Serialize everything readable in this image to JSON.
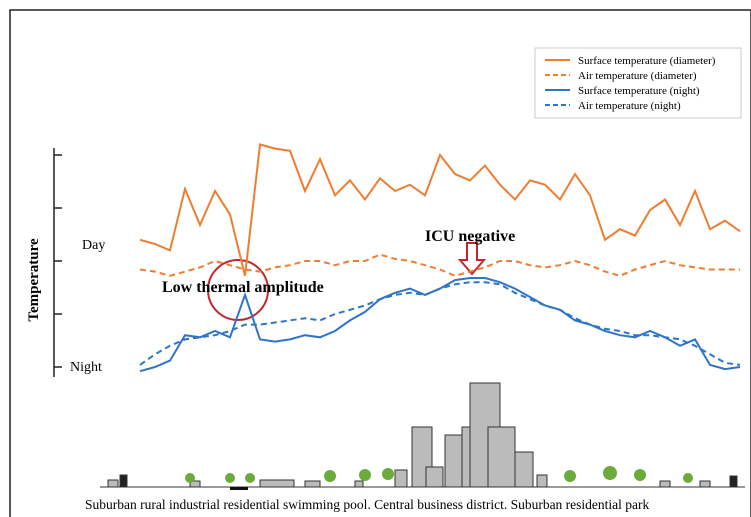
{
  "chart_data": {
    "type": "line",
    "y_label": "Temperature",
    "annotations": {
      "day": "Day",
      "night": "Night",
      "low": "Low thermal amplitude",
      "icu": "ICU negative",
      "caption": "Suburban rural industrial residential swimming pool. Central business district. Suburban residential park"
    },
    "x": [
      0,
      1,
      2,
      3,
      4,
      5,
      6,
      7,
      8,
      9,
      10,
      11,
      12,
      13,
      14,
      15,
      16,
      17,
      18,
      19,
      20,
      21,
      22,
      23,
      24,
      25,
      26,
      27,
      28,
      29,
      30,
      31,
      32,
      33,
      34,
      35,
      36,
      37,
      38,
      39,
      40
    ],
    "xlim": [
      0,
      40
    ],
    "ylim": [
      -5,
      105
    ],
    "yticks": [
      0,
      25,
      50,
      75,
      100
    ],
    "series": [
      {
        "name": "Surface temperature (diameter)",
        "color": "#ed7d31",
        "dash": false,
        "values": [
          60,
          58,
          55,
          84,
          67,
          83,
          72,
          43,
          105,
          103,
          102,
          83,
          98,
          81,
          88,
          79,
          89,
          83,
          86,
          81,
          100,
          91,
          88,
          95,
          86,
          79,
          88,
          86,
          79,
          91,
          81,
          60,
          65,
          62,
          74,
          79,
          67,
          83,
          65,
          69,
          64
        ]
      },
      {
        "name": "Air temperature (diameter)",
        "color": "#ed7d31",
        "dash": true,
        "values": [
          46,
          45,
          43,
          45,
          47,
          50,
          48,
          46,
          45,
          47,
          48,
          50,
          50,
          48,
          50,
          50,
          53,
          51,
          50,
          48,
          46,
          43,
          45,
          47,
          50,
          50,
          48,
          47,
          48,
          50,
          48,
          45,
          43,
          46,
          48,
          50,
          48,
          47,
          46,
          46,
          46
        ]
      },
      {
        "name": "Surface temperature (night)",
        "color": "#2e75c9",
        "dash": false,
        "values": [
          -2,
          0,
          3,
          15,
          14,
          17,
          14,
          34,
          13,
          12,
          13,
          15,
          14,
          17,
          22,
          26,
          32,
          35,
          37,
          34,
          37,
          41,
          42,
          42,
          40,
          37,
          33,
          29,
          27,
          22,
          20,
          17,
          15,
          14,
          17,
          14,
          10,
          13,
          1,
          -1,
          0
        ]
      },
      {
        "name": "Air temperature (night)",
        "color": "#2e75c9",
        "dash": true,
        "values": [
          1,
          6,
          10,
          13,
          14,
          15,
          17,
          20,
          20,
          21,
          22,
          23,
          22,
          25,
          27,
          29,
          32,
          34,
          35,
          34,
          37,
          39,
          40,
          40,
          39,
          35,
          32,
          29,
          27,
          23,
          20,
          18,
          17,
          15,
          15,
          14,
          13,
          10,
          6,
          2,
          1
        ]
      }
    ]
  }
}
